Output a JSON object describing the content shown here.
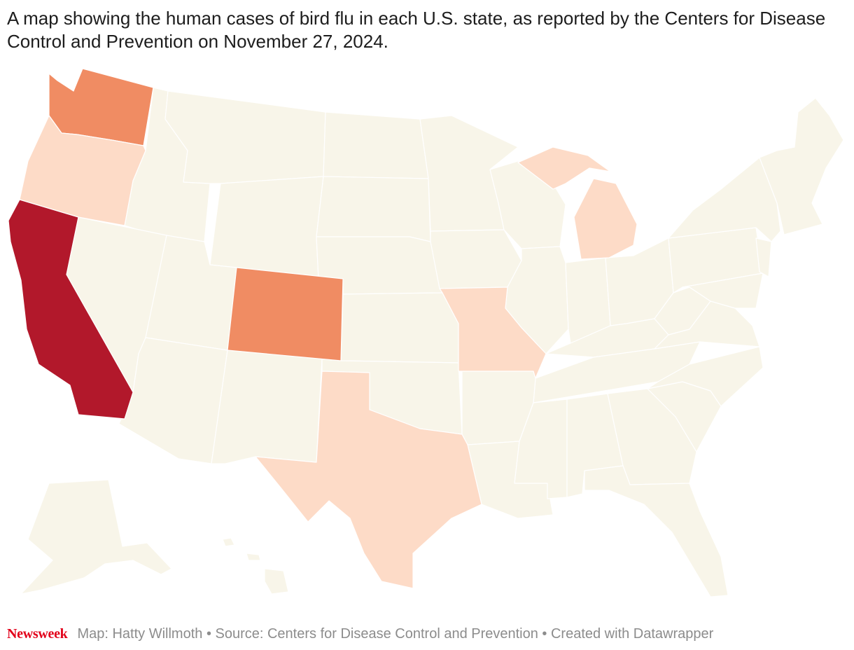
{
  "title": "A map showing the human cases of bird flu in each U.S. state, as reported by the Centers for Disease Control and Prevention on November 27, 2024.",
  "footer": {
    "brand": "Newsweek",
    "credit": "Map: Hatty Willmoth • Source: Centers for Disease Control and Prevention • Created with Datawrapper"
  },
  "colors": {
    "brand": "#e2001a",
    "no_cases": "#f8f5e9",
    "low": "#fddbc7",
    "medium": "#f08c63",
    "high": "#b2182b",
    "border": "#ffffff"
  },
  "states_highlighted": [
    {
      "state": "California",
      "level": "high"
    },
    {
      "state": "Washington",
      "level": "medium"
    },
    {
      "state": "Colorado",
      "level": "medium"
    },
    {
      "state": "Oregon",
      "level": "low"
    },
    {
      "state": "Michigan",
      "level": "low"
    },
    {
      "state": "Missouri",
      "level": "low"
    },
    {
      "state": "Texas",
      "level": "low"
    }
  ]
}
